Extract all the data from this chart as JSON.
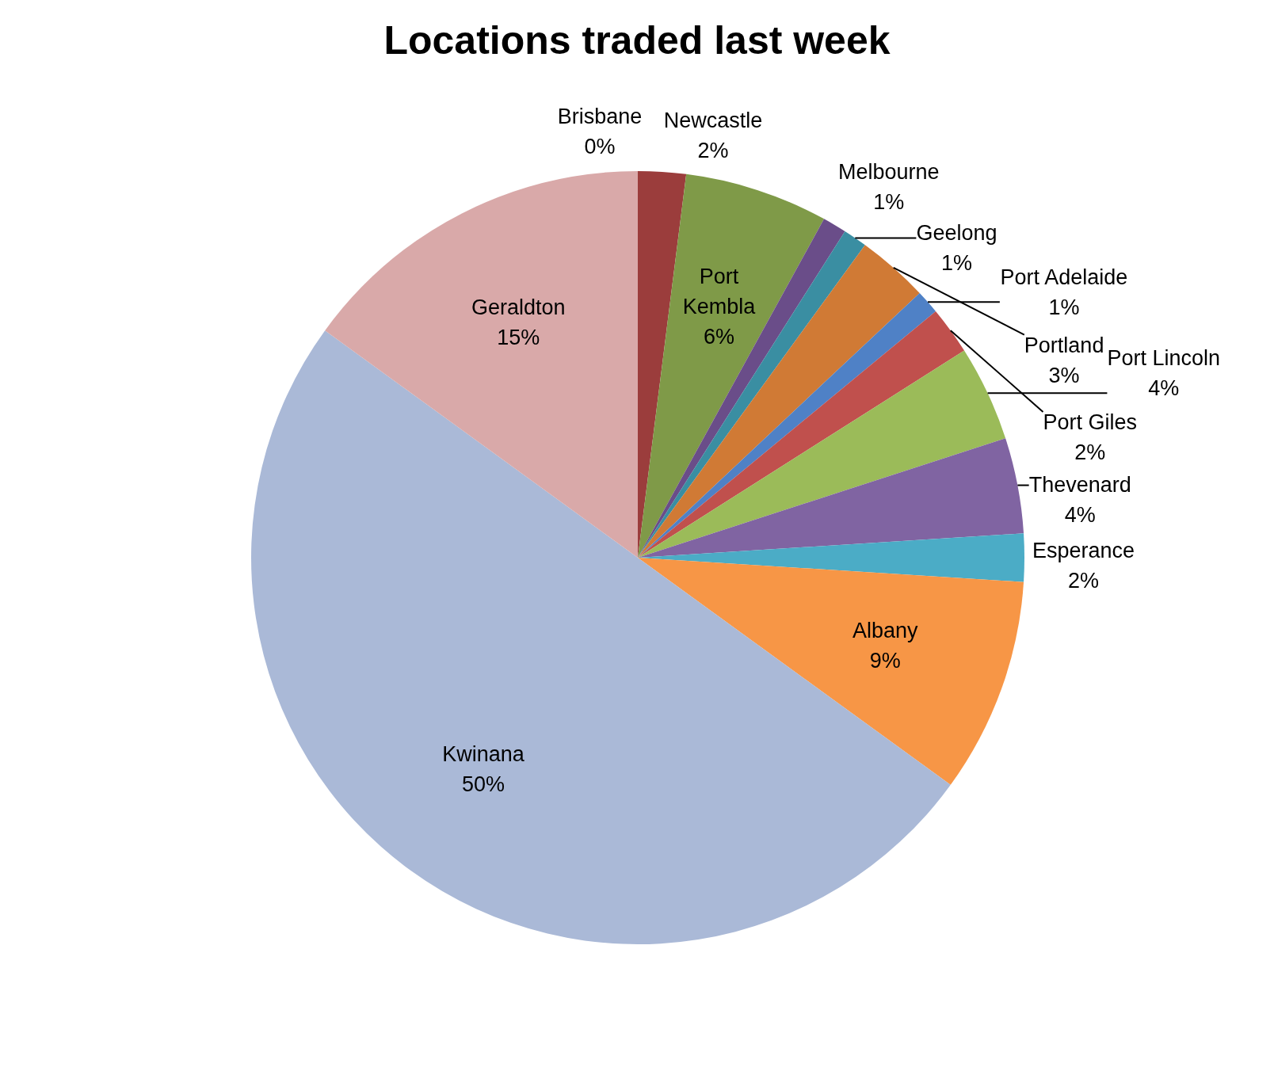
{
  "chart_data": {
    "type": "pie",
    "title": "Locations traded last week",
    "categories": [
      "Brisbane",
      "Newcastle",
      "Port Kembla",
      "Melbourne",
      "Geelong",
      "Portland",
      "Port Adelaide",
      "Port Giles",
      "Port Lincoln",
      "Thevenard",
      "Esperance",
      "Albany",
      "Kwinana",
      "Geraldton"
    ],
    "values": [
      0,
      2,
      6,
      1,
      1,
      3,
      1,
      2,
      4,
      4,
      2,
      9,
      50,
      15
    ],
    "value_labels": [
      "0%",
      "2%",
      "6%",
      "1%",
      "1%",
      "3%",
      "1%",
      "2%",
      "4%",
      "4%",
      "2%",
      "9%",
      "50%",
      "15%"
    ],
    "colors": [
      "#3f64a0",
      "#9b3d3c",
      "#7f9a48",
      "#6a4d89",
      "#3a8ea2",
      "#d07a35",
      "#4f81c6",
      "#c0504d",
      "#9bbb59",
      "#8064a2",
      "#4bacc6",
      "#f79646",
      "#aab9d7",
      "#d9a9a9"
    ],
    "legend": false
  }
}
